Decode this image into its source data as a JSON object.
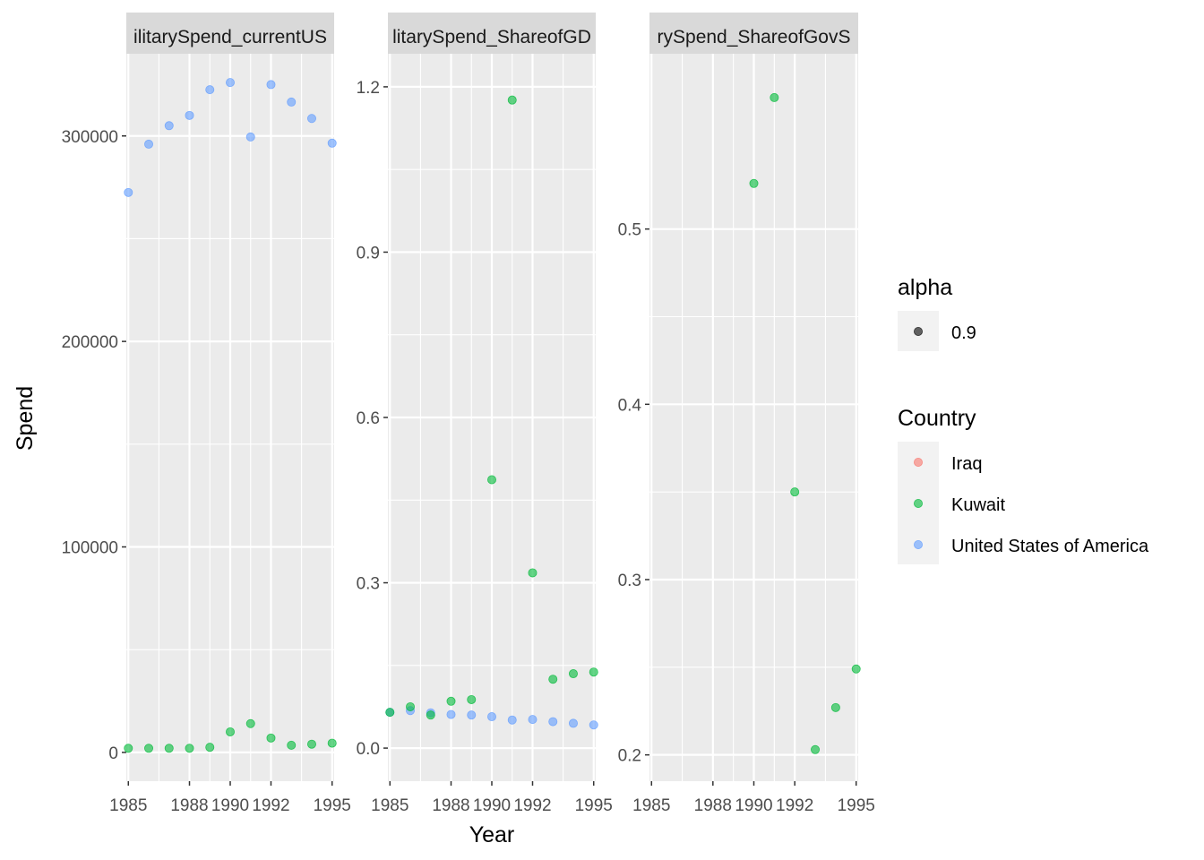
{
  "chart_data": {
    "type": "scatter",
    "xlabel": "Year",
    "ylabel": "Spend",
    "x_ticks": [
      1985,
      1988,
      1990,
      1992,
      1995
    ],
    "x_tick_labels": [
      "1985",
      "1988",
      "1990",
      "1992",
      "1995"
    ],
    "xlim": [
      1984.9,
      1995.1
    ],
    "panels": [
      {
        "strip": "ilitarySpend_currentUS",
        "ylim": [
          -14000,
          340000
        ],
        "y_ticks": [
          0,
          100000,
          200000,
          300000
        ],
        "y_tick_labels": [
          "0",
          "100000",
          "200000",
          "300000"
        ],
        "series": [
          {
            "name": "United States of America",
            "x": [
              1985,
              1986,
              1987,
              1988,
              1989,
              1990,
              1991,
              1992,
              1993,
              1994,
              1995
            ],
            "y": [
              272500,
              296000,
              305000,
              310000,
              322500,
              326000,
              299500,
              325000,
              316500,
              308500,
              296500
            ]
          },
          {
            "name": "Kuwait",
            "x": [
              1985,
              1986,
              1987,
              1988,
              1989,
              1990,
              1991,
              1992,
              1993,
              1994,
              1995
            ],
            "y": [
              2000,
              2000,
              2000,
              2000,
              2500,
              10000,
              14000,
              7000,
              3500,
              4000,
              4500
            ]
          }
        ]
      },
      {
        "strip": "litarySpend_ShareofGD",
        "ylim": [
          -0.06,
          1.26
        ],
        "y_ticks": [
          0.0,
          0.3,
          0.6,
          0.9,
          1.2
        ],
        "y_tick_labels": [
          "0.0",
          "0.3",
          "0.6",
          "0.9",
          "1.2"
        ],
        "series": [
          {
            "name": "United States of America",
            "x": [
              1985,
              1986,
              1987,
              1988,
              1989,
              1990,
              1991,
              1992,
              1993,
              1994,
              1995
            ],
            "y": [
              0.065,
              0.068,
              0.064,
              0.061,
              0.06,
              0.057,
              0.051,
              0.052,
              0.048,
              0.045,
              0.042
            ]
          },
          {
            "name": "Kuwait",
            "x": [
              1985,
              1986,
              1987,
              1988,
              1989,
              1990,
              1991,
              1992,
              1993,
              1994,
              1995
            ],
            "y": [
              0.065,
              0.075,
              0.06,
              0.085,
              0.088,
              0.487,
              1.176,
              0.318,
              0.125,
              0.135,
              0.138
            ]
          }
        ]
      },
      {
        "strip": "rySpend_ShareofGovS",
        "ylim": [
          0.185,
          0.6
        ],
        "y_ticks": [
          0.2,
          0.3,
          0.4,
          0.5
        ],
        "y_tick_labels": [
          "0.2",
          "0.3",
          "0.4",
          "0.5"
        ],
        "series": [
          {
            "name": "Kuwait",
            "x": [
              1990,
              1991,
              1992,
              1993,
              1994,
              1995
            ],
            "y": [
              0.526,
              0.575,
              0.35,
              0.203,
              0.227,
              0.249
            ]
          }
        ]
      }
    ],
    "legend": {
      "position": "right",
      "groups": [
        {
          "title": "alpha",
          "entries": [
            {
              "label": "0.9",
              "color": "#000000"
            }
          ]
        },
        {
          "title": "Country",
          "entries": [
            {
              "label": "Iraq",
              "color": "#F8766D"
            },
            {
              "label": "Kuwait",
              "color": "#00BA38"
            },
            {
              "label": "United States of America",
              "color": "#619CFF"
            }
          ]
        }
      ]
    },
    "point_alpha": 0.6
  }
}
